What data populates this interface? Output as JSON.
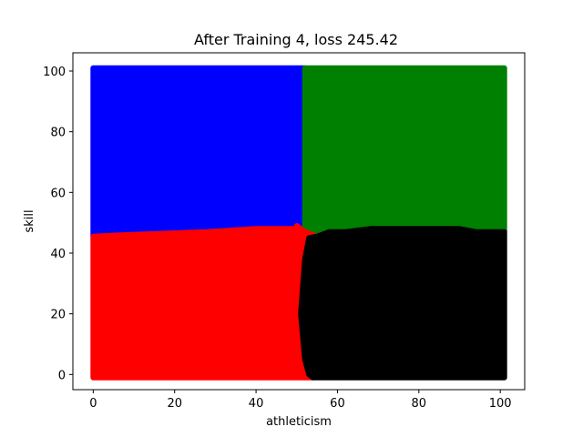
{
  "chart_data": {
    "type": "scatter",
    "title": "After Training 4, loss 245.42",
    "xlabel": "athleticism",
    "ylabel": "skill",
    "xlim": [
      -5,
      106
    ],
    "ylim": [
      -5,
      106
    ],
    "xticks": [
      0,
      20,
      40,
      60,
      80,
      100
    ],
    "yticks": [
      0,
      20,
      40,
      60,
      80,
      100
    ],
    "xtick_labels": [
      "0",
      "20",
      "40",
      "60",
      "80",
      "100"
    ],
    "ytick_labels": [
      "0",
      "20",
      "40",
      "60",
      "80",
      "100"
    ],
    "grid": false,
    "legend": "none",
    "grid_points": {
      "x_range": [
        0,
        101
      ],
      "y_range": [
        0,
        101
      ],
      "step": 1
    },
    "series": [
      {
        "color": "#0000ff",
        "region": "upper-left",
        "polygon": [
          [
            0,
            101
          ],
          [
            52,
            101
          ],
          [
            52,
            49
          ],
          [
            50,
            49
          ],
          [
            50,
            48
          ],
          [
            40,
            48
          ],
          [
            28,
            47
          ],
          [
            8,
            46
          ],
          [
            0,
            45.5
          ]
        ]
      },
      {
        "color": "#008000",
        "region": "upper-right",
        "polygon": [
          [
            52,
            101
          ],
          [
            101,
            101
          ],
          [
            101,
            47
          ],
          [
            94,
            47
          ],
          [
            90,
            48
          ],
          [
            68,
            48
          ],
          [
            62,
            47
          ],
          [
            58,
            47
          ],
          [
            55,
            45.5
          ],
          [
            52,
            47
          ]
        ]
      },
      {
        "color": "#ff0000",
        "region": "lower-left",
        "polygon": [
          [
            0,
            45.5
          ],
          [
            8,
            46
          ],
          [
            28,
            47
          ],
          [
            40,
            48
          ],
          [
            50,
            48
          ],
          [
            50,
            49
          ],
          [
            52,
            47
          ],
          [
            55,
            45.5
          ],
          [
            53,
            45
          ],
          [
            52,
            38
          ],
          [
            52,
            20
          ],
          [
            51,
            18
          ],
          [
            51,
            20
          ],
          [
            52,
            5
          ],
          [
            53,
            0
          ],
          [
            54,
            -1
          ],
          [
            0,
            -1
          ]
        ]
      },
      {
        "color": "#000000",
        "region": "lower-right",
        "polygon": [
          [
            55,
            45.5
          ],
          [
            58,
            47
          ],
          [
            62,
            47
          ],
          [
            68,
            48
          ],
          [
            90,
            48
          ],
          [
            94,
            47
          ],
          [
            101,
            47
          ],
          [
            101,
            -1
          ],
          [
            54,
            -1
          ],
          [
            53,
            0
          ],
          [
            52,
            5
          ],
          [
            51,
            20
          ],
          [
            52,
            38
          ],
          [
            53,
            45
          ]
        ]
      }
    ]
  }
}
